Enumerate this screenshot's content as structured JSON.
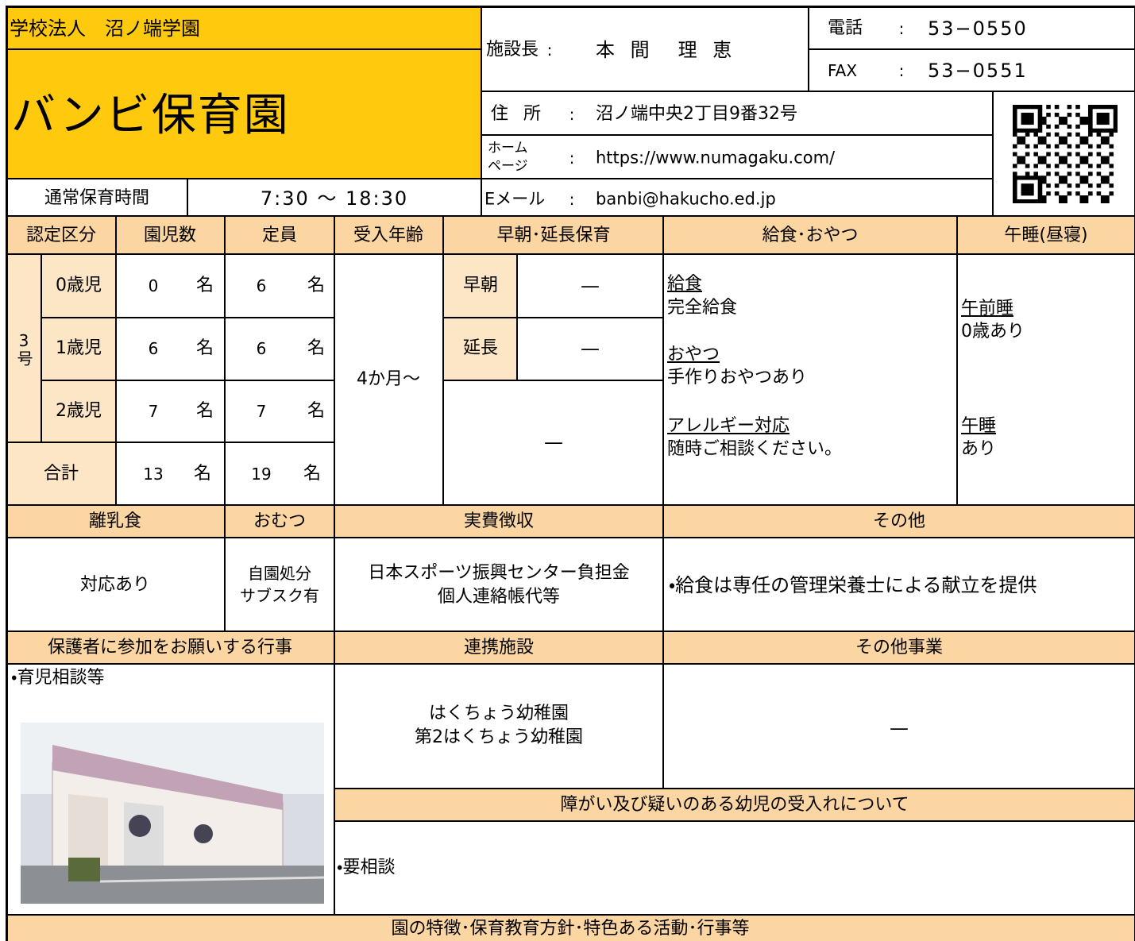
{
  "header": {
    "corporation": "学校法人　沼ノ端学園",
    "name": "バンビ保育園",
    "hours_label": "通常保育時間",
    "hours": "7:30 〜 18:30",
    "separator": ":",
    "director_label": "施設長",
    "director": "本 間　理 恵",
    "phone_label": "電話",
    "phone": "53−0550",
    "fax_label": "FAX",
    "fax": "53−0551",
    "address_label": "住 所",
    "address": "沼ノ端中央2丁目9番32号",
    "homepage_label": [
      "ホーム",
      "ページ"
    ],
    "homepage": "https://www.numagaku.com/",
    "email_label": "Eメール",
    "email": "banbi@hakucho.ed.jp"
  },
  "table": {
    "headers": [
      "認定区分",
      "園児数",
      "定員",
      "受入年齢",
      "早朝･延長保育",
      "給食･おやつ",
      "午睡(昼寝)"
    ],
    "category": "3号",
    "unit": "名",
    "rows": [
      {
        "age": "0歳児",
        "enrolled": 0,
        "capacity": 6
      },
      {
        "age": "1歳児",
        "enrolled": 6,
        "capacity": 6
      },
      {
        "age": "2歳児",
        "enrolled": 7,
        "capacity": 7
      }
    ],
    "total": {
      "label": "合計",
      "enrolled": 13,
      "capacity": 19
    },
    "admission_age": "4か月〜",
    "extended": {
      "early_label": "早朝",
      "early": "—",
      "late_label": "延長",
      "late": "—",
      "other": "—"
    },
    "meals": [
      {
        "heading": "給食",
        "text": "完全給食"
      },
      {
        "heading": "おやつ",
        "text": "手作りおやつあり"
      },
      {
        "heading": "アレルギー対応",
        "text": "随時ご相談ください。"
      }
    ],
    "nap": [
      {
        "heading": "午前睡",
        "text": "0歳あり"
      },
      {
        "heading": "午睡",
        "text": "あり"
      }
    ]
  },
  "section2": {
    "headers": [
      "離乳食",
      "おむつ",
      "実費徴収",
      "その他"
    ],
    "baby_food": "対応あり",
    "diapers": [
      "自園処分",
      "サブスク有"
    ],
    "fees": [
      "日本スポーツ振興センター負担金",
      "個人連絡帳代等"
    ],
    "other": "・給食は専任の管理栄養士による献立を提供"
  },
  "section3": {
    "headers": [
      "保護者に参加をお願いする行事",
      "連携施設",
      "その他事業"
    ],
    "events": "・育児相談等",
    "partners": [
      "はくちょう幼稚園",
      "第2はくちょう幼稚園"
    ],
    "other_business": "—",
    "disability_header": "障がい及び疑いのある幼児の受入れについて",
    "disability": "・要相談"
  },
  "footer": {
    "header": "園の特徴･保育教育方針･特色ある活動･行事等"
  }
}
